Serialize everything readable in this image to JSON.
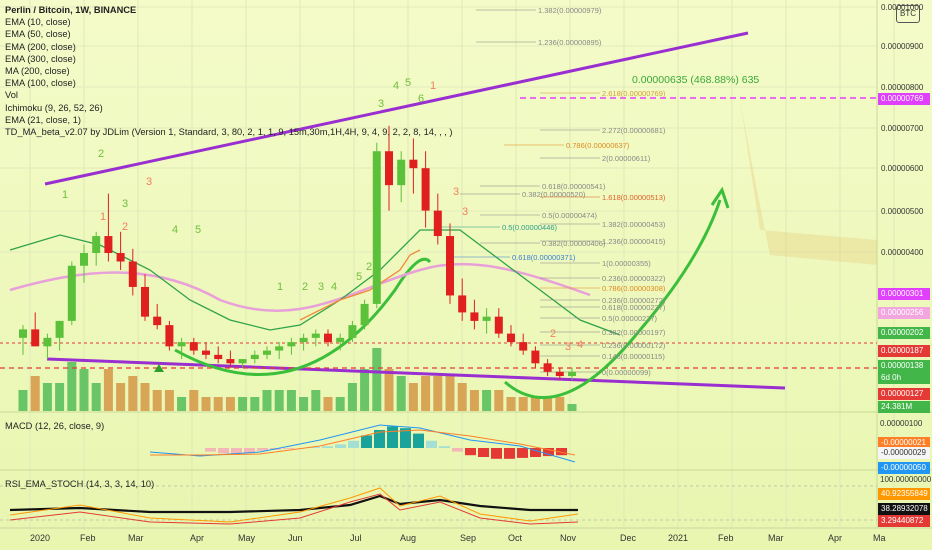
{
  "header": {
    "title": "Perlin / Bitcoin, 1W, BINANCE",
    "indicators": [
      "EMA (10, close)",
      "EMA (50, close)",
      "EMA (200, close)",
      "EMA (300, close)",
      "MA (200, close)",
      "EMA (100, close)",
      "Vol",
      "Ichimoku (9, 26, 52, 26)",
      "EMA (21, close, 1)",
      "TD_MA_beta_v2.07 by JDLim (Version 1, Standard, 3, 80, 2, 1, 1, 9, 15m,30m,1H,4H, 9, 4, 9, 2, 2, 8, 14, , , )"
    ],
    "currency_badge": "BTC"
  },
  "panels": {
    "macd_label": "MACD (12, 26, close, 9)",
    "rsi_label": "RSI_EMA_STOCH (14, 3, 3, 14, 10)"
  },
  "measure_label": "0.00000635 (468.88%) 635",
  "price_axis": {
    "ticks": [
      "0.00001000",
      "0.00000900",
      "0.00000800",
      "0.00000700",
      "0.00000600",
      "0.00000500",
      "0.00000400"
    ],
    "labels": [
      {
        "text": "0.00000769",
        "color": "#e040fb"
      },
      {
        "text": "0.00000301",
        "color": "#e040fb"
      },
      {
        "text": "0.00000256",
        "color": "#f2a6e0"
      },
      {
        "text": "0.00000202",
        "color": "#43b649"
      },
      {
        "text": "0.00000187",
        "color": "#e53935"
      },
      {
        "text": "0.00000138",
        "color": "#43b649"
      },
      {
        "text": "6d 0h",
        "color": "#43b649"
      },
      {
        "text": "0.00000127",
        "color": "#e53935"
      },
      {
        "text": "24.381M",
        "color": "#43b649"
      }
    ],
    "macd": [
      {
        "text": "0.00000100",
        "color": ""
      },
      {
        "text": "-0.00000021",
        "color": "#ff7f27"
      },
      {
        "text": "-0.00000029",
        "color": "#f5f5f5"
      },
      {
        "text": "-0.00000050",
        "color": "#2196f3"
      }
    ],
    "rsi": [
      {
        "text": "100.00000000",
        "color": ""
      },
      {
        "text": "40.92355849",
        "color": "#ff9800"
      },
      {
        "text": "38.28932078",
        "color": "#111111"
      },
      {
        "text": "3.29440872",
        "color": "#e53935"
      }
    ]
  },
  "fib_upper": [
    {
      "level": "1.382(0.00000979)",
      "color": "#888888"
    },
    {
      "level": "1.236(0.00000895)",
      "color": "#888888"
    },
    {
      "level": "2.618(0.00000769)",
      "color": "#d0a23a"
    },
    {
      "level": "2.272(0.00000681)",
      "color": "#888888"
    },
    {
      "level": "0.786(0.00000637)",
      "color": "#e08a20"
    },
    {
      "level": "2(0.00000611)",
      "color": "#888888"
    },
    {
      "level": "0.618(0.00000541)",
      "color": "#888888"
    },
    {
      "level": "0.382(0.00000520)",
      "color": "#888888"
    },
    {
      "level": "1.618(0.00000513)",
      "color": "#e0602a"
    },
    {
      "level": "0.5(0.00000474)",
      "color": "#888888"
    },
    {
      "level": "1.382(0.00000453)",
      "color": "#888888"
    },
    {
      "level": "0.5(0.00000446)",
      "color": "#2d9e8a"
    },
    {
      "level": "1.236(0.00000415)",
      "color": "#888888"
    },
    {
      "level": "0.382(0.00000406)",
      "color": "#888888"
    },
    {
      "level": "0.618(0.00000371)",
      "color": "#3a7fd5"
    },
    {
      "level": "1(0.00000355)",
      "color": "#888888"
    },
    {
      "level": "0.236(0.00000322)",
      "color": "#888888"
    },
    {
      "level": "0.786(0.00000308)",
      "color": "#e08a20"
    },
    {
      "level": "0.236(0.00000272)",
      "color": "#888888"
    },
    {
      "level": "0.618(0.00000237)",
      "color": "#888888"
    },
    {
      "level": "0.5(0.00000227)",
      "color": "#888888"
    },
    {
      "level": "0.382(0.00000197)",
      "color": "#888888"
    },
    {
      "level": "0.236(0.00000172)",
      "color": "#888888"
    },
    {
      "level": "0.146(0.00000115)",
      "color": "#888888"
    },
    {
      "level": "0(0.00000099)",
      "color": "#888888"
    }
  ],
  "td_counts": {
    "green": [
      "1",
      "2",
      "3",
      "4",
      "5",
      "1",
      "2",
      "3",
      "4",
      "5",
      "2",
      "3",
      "4",
      "5",
      "6"
    ],
    "red": [
      "1",
      "2",
      "3",
      "3",
      "3",
      "1",
      "2",
      "3",
      "4"
    ]
  },
  "chart_data": {
    "type": "candlestick",
    "symbol": "Perlin / Bitcoin",
    "interval": "1W",
    "exchange": "BINANCE",
    "x_labels": [
      "2020",
      "Feb",
      "Mar",
      "Apr",
      "May",
      "Jun",
      "Jul",
      "Aug",
      "Sep",
      "Oct",
      "Nov",
      "Dec",
      "2021",
      "Feb",
      "Mar",
      "Apr",
      "Ma"
    ],
    "ylim": [
      9e-07,
      1e-05
    ],
    "candles": [
      {
        "o": 2.2e-06,
        "h": 2.5e-06,
        "l": 1.8e-06,
        "c": 2.4e-06
      },
      {
        "o": 2.4e-06,
        "h": 2.8e-06,
        "l": 2e-06,
        "c": 2e-06
      },
      {
        "o": 2e-06,
        "h": 2.3e-06,
        "l": 1.7e-06,
        "c": 2.2e-06
      },
      {
        "o": 2.2e-06,
        "h": 2.6e-06,
        "l": 1.9e-06,
        "c": 2.6e-06
      },
      {
        "o": 2.6e-06,
        "h": 4e-06,
        "l": 2.5e-06,
        "c": 3.9e-06
      },
      {
        "o": 3.9e-06,
        "h": 4.4e-06,
        "l": 3.5e-06,
        "c": 4.2e-06
      },
      {
        "o": 4.2e-06,
        "h": 4.7e-06,
        "l": 3.9e-06,
        "c": 4.6e-06
      },
      {
        "o": 4.6e-06,
        "h": 5.6e-06,
        "l": 4e-06,
        "c": 4.2e-06
      },
      {
        "o": 4.2e-06,
        "h": 4.7e-06,
        "l": 3.8e-06,
        "c": 4e-06
      },
      {
        "o": 4e-06,
        "h": 4.3e-06,
        "l": 3.2e-06,
        "c": 3.4e-06
      },
      {
        "o": 3.4e-06,
        "h": 3.7e-06,
        "l": 2.6e-06,
        "c": 2.7e-06
      },
      {
        "o": 2.7e-06,
        "h": 3e-06,
        "l": 2.4e-06,
        "c": 2.5e-06
      },
      {
        "o": 2.5e-06,
        "h": 2.6e-06,
        "l": 1.9e-06,
        "c": 2e-06
      },
      {
        "o": 2e-06,
        "h": 2.2e-06,
        "l": 1.7e-06,
        "c": 2.1e-06
      },
      {
        "o": 2.1e-06,
        "h": 2.2e-06,
        "l": 1.8e-06,
        "c": 1.9e-06
      },
      {
        "o": 1.9e-06,
        "h": 2.1e-06,
        "l": 1.7e-06,
        "c": 1.8e-06
      },
      {
        "o": 1.8e-06,
        "h": 2e-06,
        "l": 1.6e-06,
        "c": 1.7e-06
      },
      {
        "o": 1.7e-06,
        "h": 1.9e-06,
        "l": 1.5e-06,
        "c": 1.6e-06
      },
      {
        "o": 1.6e-06,
        "h": 1.7e-06,
        "l": 1.5e-06,
        "c": 1.7e-06
      },
      {
        "o": 1.7e-06,
        "h": 1.9e-06,
        "l": 1.6e-06,
        "c": 1.8e-06
      },
      {
        "o": 1.8e-06,
        "h": 2e-06,
        "l": 1.7e-06,
        "c": 1.9e-06
      },
      {
        "o": 1.9e-06,
        "h": 2.1e-06,
        "l": 1.7e-06,
        "c": 2e-06
      },
      {
        "o": 2e-06,
        "h": 2.2e-06,
        "l": 1.8e-06,
        "c": 2.1e-06
      },
      {
        "o": 2.1e-06,
        "h": 2.3e-06,
        "l": 1.9e-06,
        "c": 2.2e-06
      },
      {
        "o": 2.2e-06,
        "h": 2.4e-06,
        "l": 2e-06,
        "c": 2.3e-06
      },
      {
        "o": 2.3e-06,
        "h": 2.4e-06,
        "l": 2e-06,
        "c": 2.1e-06
      },
      {
        "o": 2.1e-06,
        "h": 2.3e-06,
        "l": 1.9e-06,
        "c": 2.2e-06
      },
      {
        "o": 2.2e-06,
        "h": 2.6e-06,
        "l": 2.1e-06,
        "c": 2.5e-06
      },
      {
        "o": 2.5e-06,
        "h": 3.1e-06,
        "l": 2.4e-06,
        "c": 3e-06
      },
      {
        "o": 3e-06,
        "h": 6.8e-06,
        "l": 2.9e-06,
        "c": 6.6e-06
      },
      {
        "o": 6.6e-06,
        "h": 7.2e-06,
        "l": 5.2e-06,
        "c": 5.8e-06
      },
      {
        "o": 5.8e-06,
        "h": 6.6e-06,
        "l": 5.4e-06,
        "c": 6.4e-06
      },
      {
        "o": 6.4e-06,
        "h": 6.9e-06,
        "l": 5.6e-06,
        "c": 6.2e-06
      },
      {
        "o": 6.2e-06,
        "h": 6.6e-06,
        "l": 4.8e-06,
        "c": 5.2e-06
      },
      {
        "o": 5.2e-06,
        "h": 5.6e-06,
        "l": 4.4e-06,
        "c": 4.6e-06
      },
      {
        "o": 4.6e-06,
        "h": 4.9e-06,
        "l": 3e-06,
        "c": 3.2e-06
      },
      {
        "o": 3.2e-06,
        "h": 3.6e-06,
        "l": 2.6e-06,
        "c": 2.8e-06
      },
      {
        "o": 2.8e-06,
        "h": 3.1e-06,
        "l": 2.4e-06,
        "c": 2.6e-06
      },
      {
        "o": 2.6e-06,
        "h": 2.9e-06,
        "l": 2.3e-06,
        "c": 2.7e-06
      },
      {
        "o": 2.7e-06,
        "h": 2.9e-06,
        "l": 2.2e-06,
        "c": 2.3e-06
      },
      {
        "o": 2.3e-06,
        "h": 2.5e-06,
        "l": 2e-06,
        "c": 2.1e-06
      },
      {
        "o": 2.1e-06,
        "h": 2.3e-06,
        "l": 1.8e-06,
        "c": 1.9e-06
      },
      {
        "o": 1.9e-06,
        "h": 2e-06,
        "l": 1.5e-06,
        "c": 1.6e-06
      },
      {
        "o": 1.6e-06,
        "h": 1.7e-06,
        "l": 1.3e-06,
        "c": 1.4e-06
      },
      {
        "o": 1.4e-06,
        "h": 1.5e-06,
        "l": 1.2e-06,
        "c": 1.3e-06
      },
      {
        "o": 1.3e-06,
        "h": 1.5e-06,
        "l": 1.2e-06,
        "c": 1.4e-06
      }
    ],
    "volume": [
      3,
      5,
      4,
      4,
      7,
      6,
      4,
      6,
      4,
      5,
      4,
      3,
      3,
      2,
      3,
      2,
      2,
      2,
      2,
      2,
      3,
      3,
      3,
      2,
      3,
      2,
      2,
      4,
      6,
      9,
      6,
      5,
      4,
      5,
      5,
      5,
      4,
      3,
      3,
      3,
      2,
      2,
      2,
      2,
      2,
      1
    ],
    "current_price": "0.00000138",
    "target_price": "0.00000769",
    "target_change": "0.00000635 (468.88%) 635",
    "macd": {
      "macd": -2.1e-07,
      "signal": -2.9e-07,
      "histogram": -5e-07
    },
    "rsi_ema_stoch": {
      "k": 40.92355849,
      "rsi": 38.28932078,
      "d": 3.29440872,
      "max": 100
    }
  }
}
